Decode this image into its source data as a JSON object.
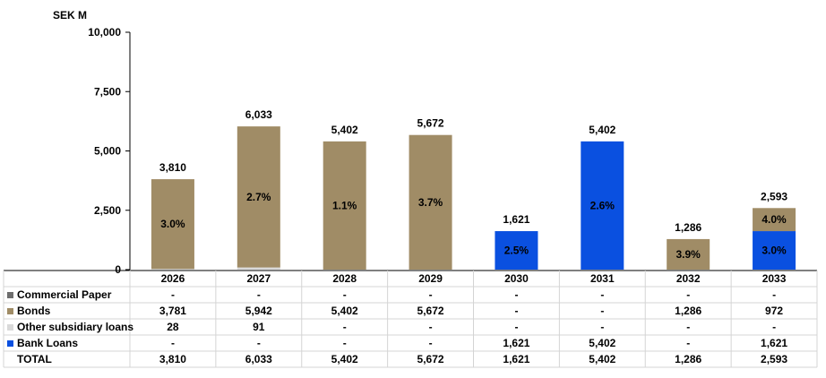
{
  "chart_data": {
    "type": "bar",
    "stacked": true,
    "unit_label": "SEK M",
    "ylim": [
      0,
      10000
    ],
    "y_ticks": [
      "0",
      "2,500",
      "5,000",
      "7,500",
      "10,000"
    ],
    "y_tick_values": [
      0,
      2500,
      5000,
      7500,
      10000
    ],
    "categories": [
      "2026",
      "2027",
      "2028",
      "2029",
      "2030",
      "2031",
      "2032",
      "2033"
    ],
    "series": [
      {
        "name": "Commercial Paper",
        "color": "#6d6d6d",
        "values": [
          0,
          0,
          0,
          0,
          0,
          0,
          0,
          0
        ],
        "display": [
          "-",
          "-",
          "-",
          "-",
          "-",
          "-",
          "-",
          "-"
        ]
      },
      {
        "name": "Bonds",
        "color": "#a08c66",
        "values": [
          3781,
          5942,
          5402,
          5672,
          0,
          0,
          1286,
          972
        ],
        "display": [
          "3,781",
          "5,942",
          "5,402",
          "5,672",
          "-",
          "-",
          "1,286",
          "972"
        ]
      },
      {
        "name": "Other subsidiary loans",
        "color": "#d9d9d9",
        "values": [
          28,
          91,
          0,
          0,
          0,
          0,
          0,
          0
        ],
        "display": [
          "28",
          "91",
          "-",
          "-",
          "-",
          "-",
          "-",
          "-"
        ]
      },
      {
        "name": "Bank Loans",
        "color": "#0a50e0",
        "values": [
          0,
          0,
          0,
          0,
          1621,
          5402,
          0,
          1621
        ],
        "display": [
          "-",
          "-",
          "-",
          "-",
          "1,621",
          "5,402",
          "-",
          "1,621"
        ]
      }
    ],
    "stack_order": [
      3,
      2,
      1,
      0
    ],
    "totals": {
      "label": "TOTAL",
      "values": [
        3810,
        6033,
        5402,
        5672,
        1621,
        5402,
        1286,
        2593
      ],
      "display": [
        "3,810",
        "6,033",
        "5,402",
        "5,672",
        "1,621",
        "5,402",
        "1,286",
        "2,593"
      ]
    },
    "annotations": [
      {
        "category": "2026",
        "series": "Bonds",
        "text": "3.0%"
      },
      {
        "category": "2027",
        "series": "Bonds",
        "text": "2.7%"
      },
      {
        "category": "2028",
        "series": "Bonds",
        "text": "1.1%"
      },
      {
        "category": "2029",
        "series": "Bonds",
        "text": "3.7%"
      },
      {
        "category": "2030",
        "series": "Bank Loans",
        "text": "2.5%"
      },
      {
        "category": "2031",
        "series": "Bank Loans",
        "text": "2.6%"
      },
      {
        "category": "2032",
        "series": "Bonds",
        "text": "3.9%"
      },
      {
        "category": "2033",
        "series": "Bonds",
        "text": "4.0%"
      },
      {
        "category": "2033",
        "series": "Bank Loans",
        "text": "3.0%"
      }
    ],
    "grid": false
  }
}
